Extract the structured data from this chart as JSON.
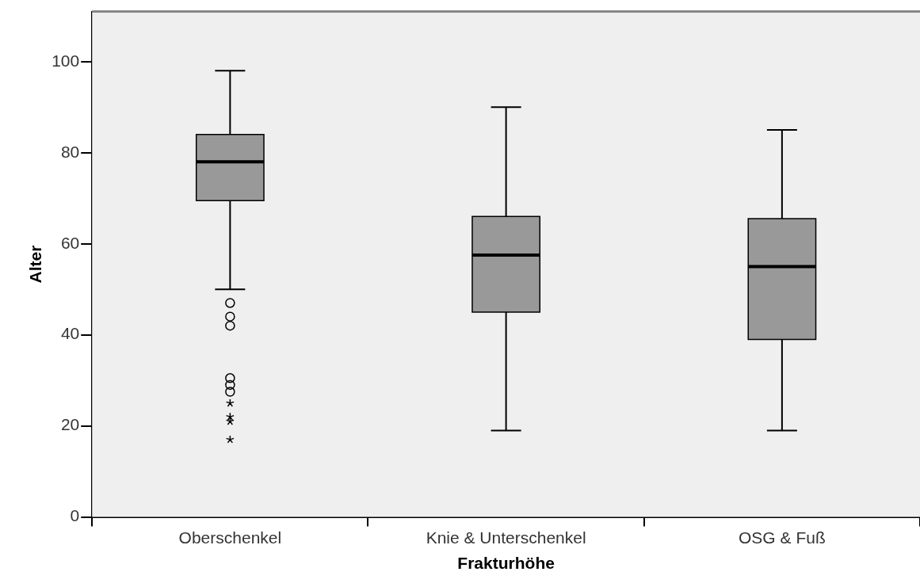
{
  "chart_data": {
    "type": "box",
    "xlabel": "Frakturhöhe",
    "ylabel": "Alter",
    "categories": [
      "Oberschenkel",
      "Knie & Unterschenkel",
      "OSG & Fuß"
    ],
    "color": "#999999",
    "ylim": [
      0,
      111
    ],
    "yticks": [
      0,
      20,
      40,
      60,
      80,
      100
    ],
    "boxes": [
      {
        "low": 50,
        "q1": 69.5,
        "median": 78,
        "q3": 84,
        "high": 98,
        "outliers": [
          47,
          44,
          42,
          30.5,
          29,
          27.5,
          25,
          22,
          21,
          17
        ]
      },
      {
        "low": 19,
        "q1": 45,
        "median": 57.5,
        "q3": 66,
        "high": 90
      },
      {
        "low": 19,
        "q1": 39,
        "median": 55,
        "q3": 65.5,
        "high": 85
      }
    ]
  }
}
